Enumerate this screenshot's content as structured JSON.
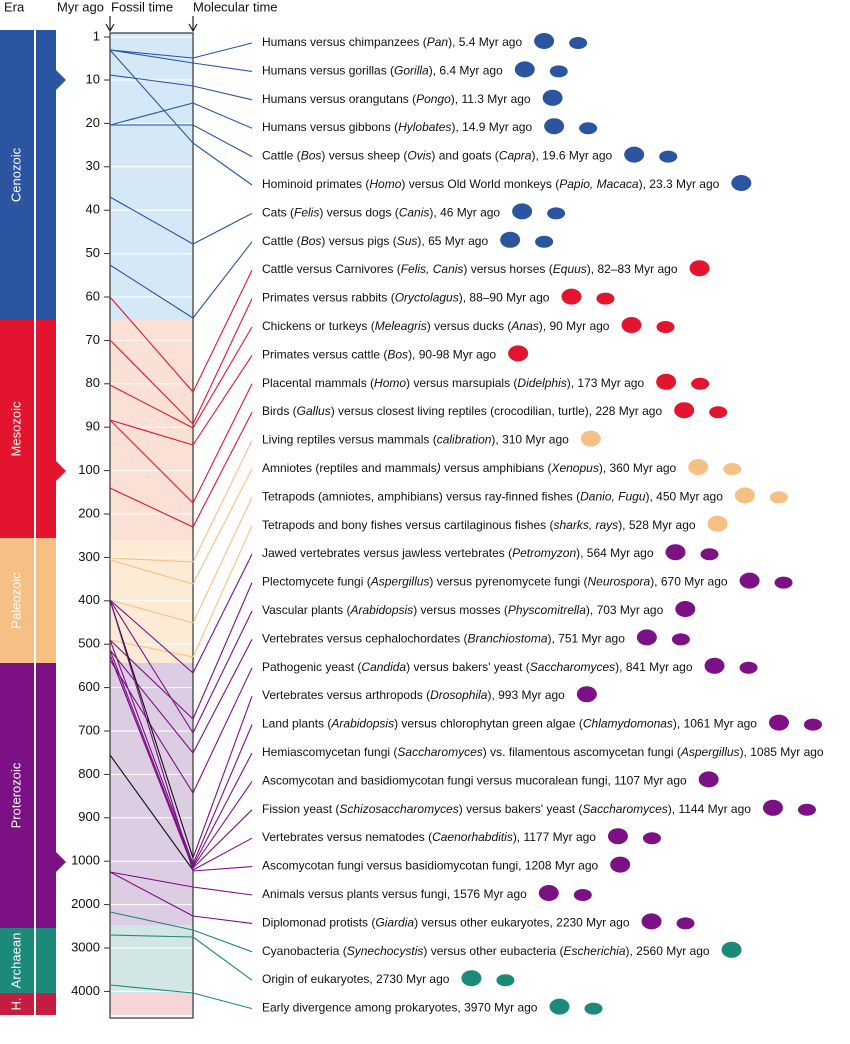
{
  "header": {
    "era": "Era",
    "myr_ago": "Myr ago",
    "fossil_time": "Fossil time",
    "molecular_time": "Molecular time"
  },
  "eras": [
    "Cenozoic",
    "Mesozoic",
    "Paleozoic",
    "Proterozoic",
    "Archaean",
    "H."
  ],
  "ticks": [
    "1",
    "10",
    "20",
    "30",
    "40",
    "50",
    "60",
    "70",
    "80",
    "90",
    "100",
    "200",
    "300",
    "400",
    "500",
    "600",
    "700",
    "800",
    "900",
    "1000",
    "2000",
    "3000",
    "4000"
  ],
  "divergences": [
    {
      "parts": [
        "Humans versus chimpanzees (",
        "Pan",
        "), 5.4 Myr ago"
      ]
    },
    {
      "parts": [
        "Humans versus gorillas (",
        "Gorilla",
        "), 6.4 Myr ago"
      ]
    },
    {
      "parts": [
        "Humans versus orangutans (",
        "Pongo",
        "), 11.3 Myr ago"
      ]
    },
    {
      "parts": [
        "Humans versus gibbons (",
        "Hylobates",
        "), 14.9 Myr ago"
      ]
    },
    {
      "parts": [
        "Cattle (",
        "Bos",
        ") versus sheep (",
        "Ovis",
        ") and goats (",
        "Capra",
        "), 19.6 Myr ago"
      ]
    },
    {
      "parts": [
        "Hominoid primates (",
        "Homo",
        ") versus Old World monkeys (",
        "Papio, Macaca",
        "), 23.3 Myr ago"
      ]
    },
    {
      "parts": [
        "Cats (",
        "Felis",
        ") versus dogs (",
        "Canis",
        "), 46 Myr ago"
      ]
    },
    {
      "parts": [
        "Cattle (",
        "Bos",
        ") versus pigs (",
        "Sus",
        "), 65 Myr ago"
      ]
    },
    {
      "parts": [
        "Cattle versus Carnivores (",
        "Felis, Canis",
        ") versus horses (",
        "Equus",
        "), 82–83 Myr ago"
      ]
    },
    {
      "parts": [
        "Primates versus rabbits (",
        "Oryctolagus",
        "), 88–90 Myr ago"
      ]
    },
    {
      "parts": [
        "Chickens or turkeys (",
        "Meleagris",
        ") versus ducks (",
        "Anas",
        "), 90 Myr ago"
      ]
    },
    {
      "parts": [
        "Primates versus cattle (",
        "Bos",
        "), 90-98 Myr ago"
      ]
    },
    {
      "parts": [
        "Placental mammals (",
        "Homo",
        ") versus marsupials (",
        "Didelphis",
        "), 173 Myr ago"
      ]
    },
    {
      "parts": [
        "Birds (",
        "Gallus",
        ") versus closest living reptiles (crocodilian, turtle), 228 Myr ago"
      ]
    },
    {
      "parts": [
        "Living reptiles versus mammals (",
        "calibration",
        "), 310 Myr ago"
      ]
    },
    {
      "parts": [
        "Amniotes (reptiles and mammals",
        ")",
        " versus amphibians (",
        "Xenopus",
        "), 360 Myr ago"
      ]
    },
    {
      "parts": [
        "Tetrapods (amniotes, amphibians) versus ray-finned fishes (",
        "Danio, Fugu",
        "), 450 Myr ago"
      ]
    },
    {
      "parts": [
        "Tetrapods and bony fishes versus cartilaginous fishes (",
        "sharks, rays",
        "), 528 Myr ago"
      ]
    },
    {
      "parts": [
        "Jawed vertebrates versus jawless vertebrates (",
        "Petromyzon",
        "), 564 Myr ago"
      ]
    },
    {
      "parts": [
        "Plectomycete fungi (",
        "Aspergillus",
        ") versus pyrenomycete fungi (",
        "Neurospora",
        "), 670 Myr ago"
      ]
    },
    {
      "parts": [
        "Vascular plants (",
        "Arabidopsis",
        ") versus mosses (",
        "Physcomitrella",
        "), 703 Myr ago"
      ]
    },
    {
      "parts": [
        "Vertebrates versus cephalochordates (",
        "Branchiostoma",
        "), 751 Myr ago"
      ]
    },
    {
      "parts": [
        "Pathogenic yeast (",
        "Candida",
        ") versus bakers' yeast (",
        "Saccharomyces",
        "), 841 Myr ago"
      ]
    },
    {
      "parts": [
        "Vertebrates versus arthropods (",
        "Drosophila",
        "), 993 Myr ago"
      ]
    },
    {
      "parts": [
        "Land plants (",
        "Arabidopsis",
        ") versus chlorophytan green algae (",
        "Chlamydomonas",
        "), 1061 Myr ago"
      ]
    },
    {
      "parts": [
        "Hemiascomycetan fungi (",
        "Saccharomyces",
        ") vs. filamentous ascomycetan fungi (",
        "Aspergillus",
        "), 1085 Myr ago"
      ]
    },
    {
      "parts": [
        "Ascomycotan and basidiomycotan fungi versus mucoralean fungi, 1107 Myr ago"
      ]
    },
    {
      "parts": [
        "Fission yeast (",
        "Schizosaccharomyces",
        ") versus bakers' yeast (",
        "Saccharomyces",
        "), 1144 Myr ago"
      ]
    },
    {
      "parts": [
        "Vertebrates versus nematodes (",
        "Caenorhabditis",
        "), 1177 Myr ago"
      ]
    },
    {
      "parts": [
        "Ascomycotan fungi versus basidiomycotan fungi, 1208 Myr ago"
      ]
    },
    {
      "parts": [
        "Animals versus plants versus fungi, 1576 Myr ago"
      ]
    },
    {
      "parts": [
        "Diplomonad protists (",
        "Giardia",
        ") versus other eukaryotes, 2230 Myr ago"
      ]
    },
    {
      "parts": [
        "Cyanobacteria (",
        "Synechocystis",
        ") versus other eubacteria (",
        "Escherichia",
        "), 2560 Myr ago"
      ]
    },
    {
      "parts": [
        "Origin of eukaryotes, 2730 Myr ago"
      ]
    },
    {
      "parts": [
        "Early divergence among prokaryotes, 3970 Myr ago"
      ]
    }
  ]
}
